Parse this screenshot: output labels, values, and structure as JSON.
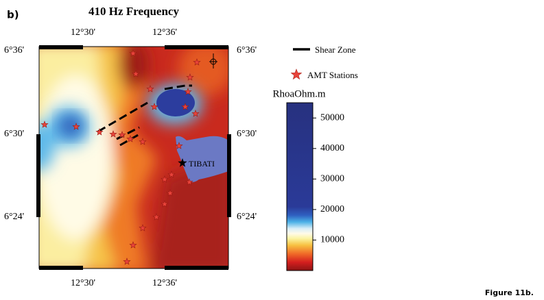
{
  "panel_label": "b)",
  "title": "410 Hz Frequency",
  "map": {
    "x_labels": [
      "12°30'",
      "12°36'"
    ],
    "y_labels": [
      "6°36'",
      "6°30'",
      "6°24'"
    ],
    "place_label": "TIBATI"
  },
  "legend": {
    "shear_zone": "Shear Zone",
    "stations": "AMT Stations"
  },
  "colorbar": {
    "title": "RhoaOhm.m",
    "range": [
      0,
      55000
    ],
    "ticks": [
      50000,
      40000,
      30000,
      20000,
      10000
    ]
  },
  "caption": "Figure 11b."
}
